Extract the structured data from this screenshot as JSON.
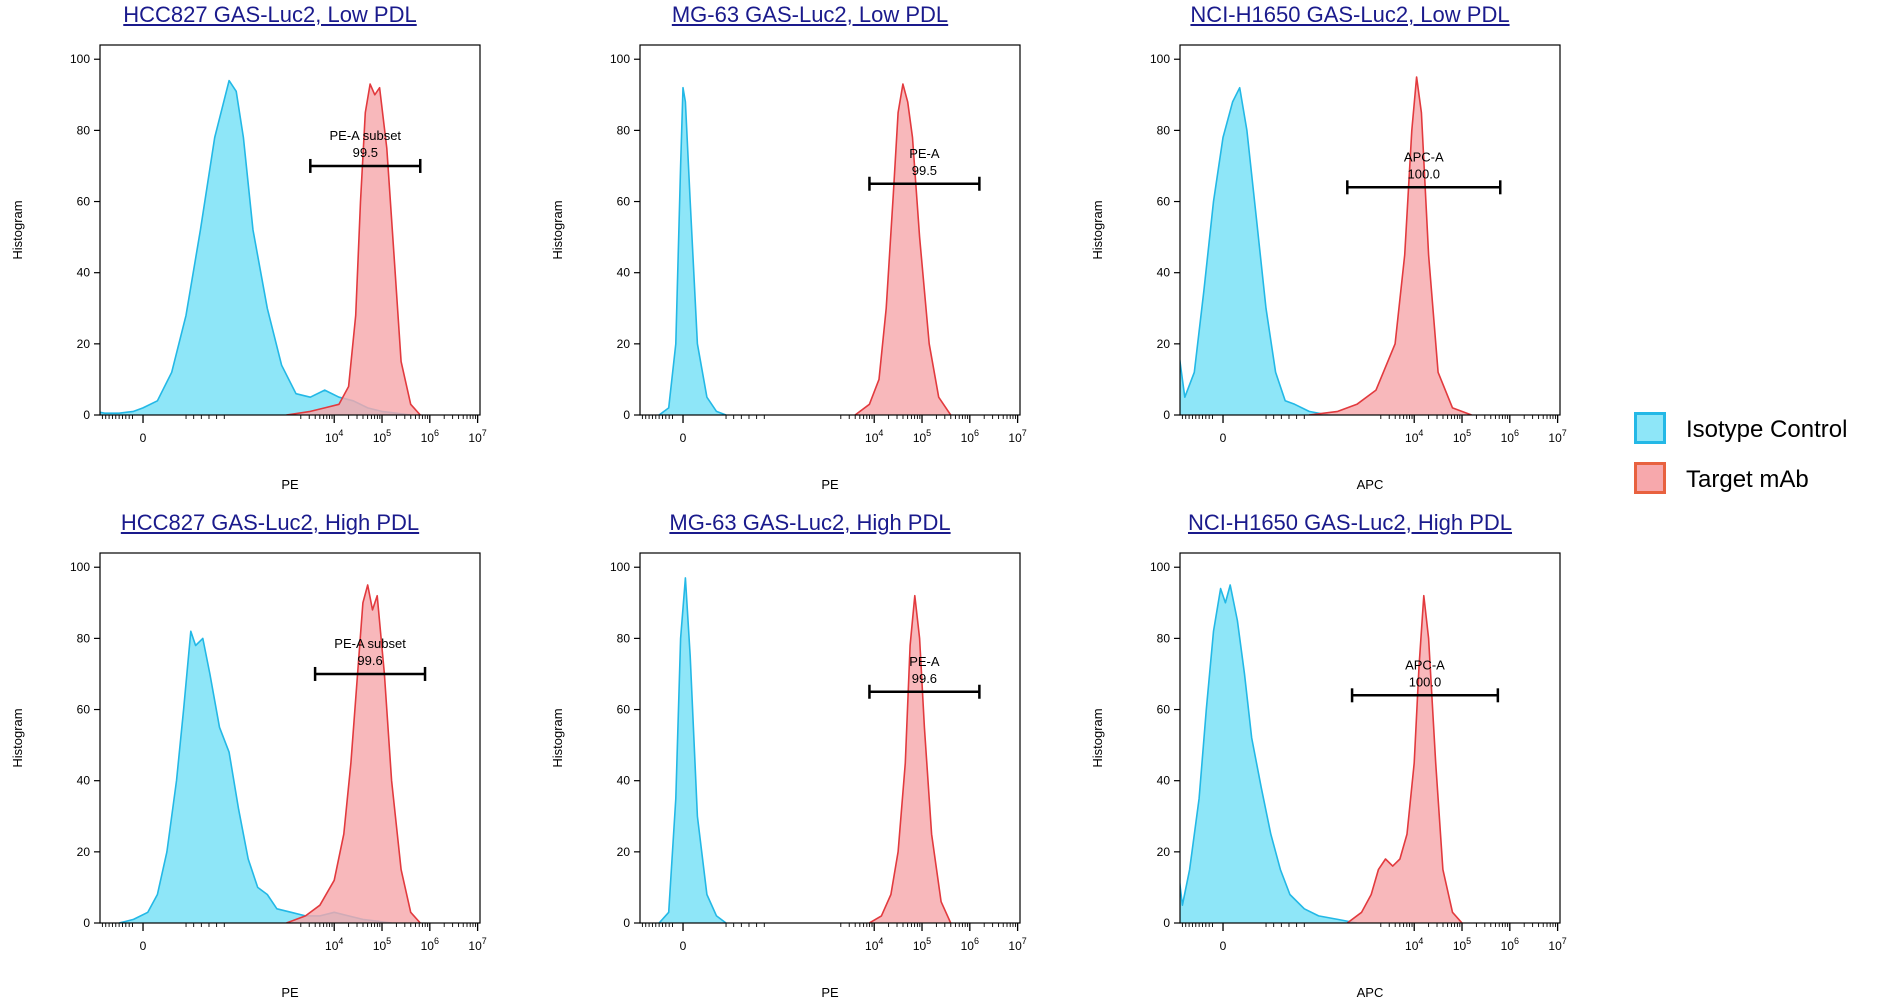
{
  "colors": {
    "iso_fill": "#8ee6f8",
    "iso_line": "#23b8e6",
    "tgt_fill": "#f7a8ac",
    "tgt_line": "#e23a3e",
    "title": "#1a1a8c",
    "axis": "#000000"
  },
  "legend": [
    {
      "label": "Isotype Control",
      "color_fill": "#8ee6f8",
      "color_border": "#23b8e6"
    },
    {
      "label": "Target mAb",
      "color_fill": "#f7a8ac",
      "color_border": "#e8613f"
    }
  ],
  "chart_data": [
    {
      "type": "area",
      "title": "HCC827 GAS-Luc2, Low PDL",
      "xlabel": "PE",
      "ylabel": "Histogram",
      "xscale": "biexponential",
      "xlim": [
        -0.9,
        7.05
      ],
      "ylim": [
        0,
        104
      ],
      "xticks": [
        "0",
        "10^4",
        "10^5",
        "10^6",
        "10^7"
      ],
      "yticks": [
        0,
        20,
        40,
        60,
        80,
        100
      ],
      "gate": {
        "name": "PE-A subset",
        "value": "99.5",
        "x_start": 3.5,
        "x_end": 5.8,
        "y": 70
      },
      "series": [
        {
          "name": "Isotype Control",
          "x": [
            -1.0,
            -0.8,
            -0.5,
            -0.2,
            0.0,
            0.3,
            0.6,
            0.9,
            1.2,
            1.5,
            1.8,
            1.95,
            2.1,
            2.3,
            2.6,
            2.9,
            3.2,
            3.5,
            3.8,
            4.1,
            4.4,
            4.7,
            5.0,
            5.3,
            5.6
          ],
          "y": [
            1,
            0.5,
            0.5,
            1,
            2,
            4,
            12,
            28,
            52,
            78,
            94,
            91,
            78,
            52,
            30,
            14,
            6,
            5,
            7,
            5,
            4,
            2,
            1,
            0.5,
            0
          ]
        },
        {
          "name": "Target mAb",
          "x": [
            3.0,
            3.5,
            3.8,
            4.1,
            4.3,
            4.45,
            4.55,
            4.65,
            4.75,
            4.85,
            4.95,
            5.1,
            5.25,
            5.4,
            5.6,
            5.8
          ],
          "y": [
            0,
            1,
            2,
            3,
            8,
            28,
            60,
            85,
            93,
            90,
            92,
            75,
            45,
            15,
            3,
            0
          ]
        }
      ]
    },
    {
      "type": "area",
      "title": "MG-63 GAS-Luc2, Low PDL",
      "xlabel": "PE",
      "ylabel": "Histogram",
      "xscale": "biexponential",
      "xlim": [
        -0.9,
        7.05
      ],
      "ylim": [
        0,
        104
      ],
      "xticks": [
        "0",
        "10^4",
        "10^5",
        "10^6",
        "10^7"
      ],
      "yticks": [
        0,
        20,
        40,
        60,
        80,
        100
      ],
      "gate": {
        "name": "PE-A",
        "value": "99.5",
        "x_start": 3.9,
        "x_end": 6.2,
        "y": 65
      },
      "series": [
        {
          "name": "Isotype Control",
          "x": [
            -0.5,
            -0.3,
            -0.15,
            -0.05,
            0.0,
            0.05,
            0.15,
            0.3,
            0.5,
            0.7,
            0.9
          ],
          "y": [
            0,
            2,
            20,
            70,
            92,
            88,
            60,
            20,
            5,
            1,
            0
          ]
        },
        {
          "name": "Target mAb",
          "x": [
            3.6,
            3.9,
            4.1,
            4.25,
            4.4,
            4.5,
            4.6,
            4.7,
            4.8,
            4.95,
            5.15,
            5.35,
            5.6
          ],
          "y": [
            0,
            3,
            10,
            30,
            62,
            85,
            93,
            88,
            78,
            50,
            20,
            5,
            0
          ]
        }
      ]
    },
    {
      "type": "area",
      "title": "NCI-H1650 GAS-Luc2, Low PDL",
      "xlabel": "APC",
      "ylabel": "Histogram",
      "xscale": "biexponential",
      "xlim": [
        -0.9,
        7.05
      ],
      "ylim": [
        0,
        104
      ],
      "xticks": [
        "0",
        "10^4",
        "10^5",
        "10^6",
        "10^7"
      ],
      "yticks": [
        0,
        20,
        40,
        60,
        80,
        100
      ],
      "gate": {
        "name": "APC-A",
        "value": "100.0",
        "x_start": 2.6,
        "x_end": 5.8,
        "y": 64
      },
      "series": [
        {
          "name": "Isotype Control",
          "x": [
            -1.0,
            -0.8,
            -0.6,
            -0.4,
            -0.2,
            0.0,
            0.2,
            0.35,
            0.5,
            0.7,
            0.9,
            1.1,
            1.3,
            1.5,
            1.8,
            2.2
          ],
          "y": [
            25,
            5,
            12,
            35,
            60,
            78,
            88,
            92,
            80,
            55,
            30,
            12,
            4,
            3,
            1,
            0
          ]
        },
        {
          "name": "Target mAb",
          "x": [
            1.8,
            2.4,
            2.8,
            3.2,
            3.6,
            3.8,
            3.95,
            4.05,
            4.15,
            4.3,
            4.5,
            4.8,
            5.2
          ],
          "y": [
            0,
            1,
            3,
            7,
            20,
            45,
            80,
            95,
            85,
            45,
            12,
            2,
            0
          ]
        }
      ]
    },
    {
      "type": "area",
      "title": "HCC827 GAS-Luc2, High PDL",
      "xlabel": "PE",
      "ylabel": "Histogram",
      "xscale": "biexponential",
      "xlim": [
        -0.9,
        7.05
      ],
      "ylim": [
        0,
        104
      ],
      "xticks": [
        "0",
        "10^4",
        "10^5",
        "10^6",
        "10^7"
      ],
      "yticks": [
        0,
        20,
        40,
        60,
        80,
        100
      ],
      "gate": {
        "name": "PE-A subset",
        "value": "99.6",
        "x_start": 3.6,
        "x_end": 5.9,
        "y": 70
      },
      "series": [
        {
          "name": "Isotype Control",
          "x": [
            -0.5,
            -0.2,
            0.1,
            0.3,
            0.5,
            0.7,
            0.85,
            1.0,
            1.1,
            1.25,
            1.4,
            1.6,
            1.8,
            2.0,
            2.2,
            2.4,
            2.6,
            2.8,
            3.1,
            3.4,
            3.7,
            4.0,
            4.3,
            4.6,
            4.9,
            5.2
          ],
          "y": [
            0,
            1,
            3,
            8,
            20,
            40,
            60,
            82,
            78,
            80,
            70,
            55,
            48,
            32,
            18,
            10,
            8,
            4,
            3,
            2,
            2,
            3,
            2,
            1,
            0.5,
            0
          ]
        },
        {
          "name": "Target mAb",
          "x": [
            3.0,
            3.4,
            3.7,
            4.0,
            4.2,
            4.35,
            4.5,
            4.6,
            4.7,
            4.8,
            4.9,
            5.05,
            5.2,
            5.4,
            5.6,
            5.8
          ],
          "y": [
            0,
            2,
            5,
            12,
            25,
            45,
            72,
            90,
            95,
            88,
            92,
            70,
            40,
            15,
            3,
            0
          ]
        }
      ]
    },
    {
      "type": "area",
      "title": "MG-63 GAS-Luc2, High PDL",
      "xlabel": "PE",
      "ylabel": "Histogram",
      "xscale": "biexponential",
      "xlim": [
        -0.9,
        7.05
      ],
      "ylim": [
        0,
        104
      ],
      "xticks": [
        "0",
        "10^4",
        "10^5",
        "10^6",
        "10^7"
      ],
      "yticks": [
        0,
        20,
        40,
        60,
        80,
        100
      ],
      "gate": {
        "name": "PE-A",
        "value": "99.6",
        "x_start": 3.9,
        "x_end": 6.2,
        "y": 65
      },
      "series": [
        {
          "name": "Isotype Control",
          "x": [
            -0.5,
            -0.3,
            -0.15,
            -0.05,
            0.05,
            0.15,
            0.3,
            0.5,
            0.7,
            0.9
          ],
          "y": [
            0,
            3,
            35,
            80,
            97,
            75,
            30,
            8,
            2,
            0
          ]
        },
        {
          "name": "Target mAb",
          "x": [
            3.9,
            4.15,
            4.35,
            4.5,
            4.65,
            4.75,
            4.85,
            4.95,
            5.05,
            5.2,
            5.4,
            5.6
          ],
          "y": [
            0,
            2,
            8,
            20,
            45,
            78,
            92,
            80,
            55,
            25,
            6,
            0
          ]
        }
      ]
    },
    {
      "type": "area",
      "title": "NCI-H1650 GAS-Luc2, High PDL",
      "xlabel": "APC",
      "ylabel": "Histogram",
      "xscale": "biexponential",
      "xlim": [
        -0.9,
        7.05
      ],
      "ylim": [
        0,
        104
      ],
      "xticks": [
        "0",
        "10^4",
        "10^5",
        "10^6",
        "10^7"
      ],
      "yticks": [
        0,
        20,
        40,
        60,
        80,
        100
      ],
      "gate": {
        "name": "APC-A",
        "value": "100.0",
        "x_start": 2.7,
        "x_end": 5.75,
        "y": 64
      },
      "series": [
        {
          "name": "Isotype Control",
          "x": [
            -1.0,
            -0.85,
            -0.7,
            -0.5,
            -0.35,
            -0.2,
            -0.05,
            0.05,
            0.15,
            0.3,
            0.45,
            0.6,
            0.8,
            1.0,
            1.2,
            1.4,
            1.7,
            2.0,
            2.4,
            2.8
          ],
          "y": [
            22,
            5,
            15,
            35,
            60,
            82,
            94,
            90,
            95,
            85,
            70,
            52,
            38,
            25,
            15,
            8,
            4,
            2,
            1,
            0
          ]
        },
        {
          "name": "Target mAb",
          "x": [
            2.6,
            2.9,
            3.1,
            3.25,
            3.4,
            3.55,
            3.7,
            3.85,
            4.0,
            4.1,
            4.2,
            4.3,
            4.45,
            4.6,
            4.8,
            5.0
          ],
          "y": [
            0,
            3,
            8,
            15,
            18,
            16,
            18,
            25,
            45,
            72,
            92,
            80,
            45,
            15,
            3,
            0
          ]
        }
      ]
    }
  ]
}
